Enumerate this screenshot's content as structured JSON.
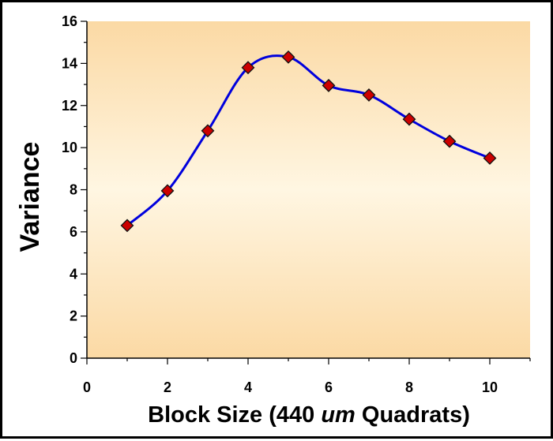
{
  "chart_data": {
    "type": "line",
    "smooth": true,
    "title": "",
    "xlabel": "Block Size (440 um Quadrats)",
    "xlabel_parts": {
      "prefix": "Block Size (440 ",
      "italic": "um",
      "suffix": " Quadrats)"
    },
    "ylabel": "Variance",
    "xlim": [
      0,
      11
    ],
    "ylim": [
      0,
      16
    ],
    "x_ticks": [
      0,
      2,
      4,
      6,
      8,
      10
    ],
    "y_ticks": [
      0,
      2,
      4,
      6,
      8,
      10,
      12,
      14,
      16
    ],
    "grid": false,
    "legend": "none",
    "series": [
      {
        "x": [
          1,
          2,
          3,
          4,
          5,
          6,
          7,
          8,
          9,
          10
        ],
        "values": [
          6.3,
          7.95,
          10.8,
          13.8,
          14.3,
          12.95,
          12.5,
          11.35,
          10.3,
          9.5
        ],
        "line_color": "#0000dd",
        "marker": "diamond",
        "marker_color": "#cc0000"
      }
    ],
    "plot_background": [
      "#fbd9a4",
      "#fff6e2"
    ]
  }
}
